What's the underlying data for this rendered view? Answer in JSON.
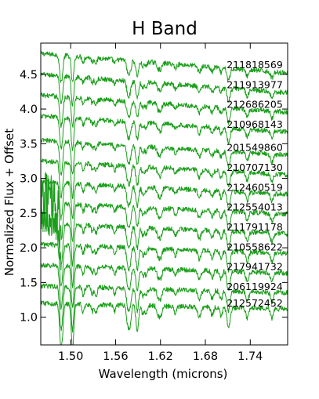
{
  "chart_data": {
    "type": "line",
    "title": "H Band",
    "xlabel": "Wavelength (microns)",
    "ylabel": "Normalized Flux + Offset",
    "xlim": [
      1.46,
      1.79
    ],
    "ylim": [
      0.6,
      4.95
    ],
    "x_ticks": [
      1.5,
      1.56,
      1.62,
      1.68,
      1.74
    ],
    "x_tick_labels": [
      "1.50",
      "1.56",
      "1.62",
      "1.68",
      "1.74"
    ],
    "y_ticks": [
      1.0,
      1.5,
      2.0,
      2.5,
      3.0,
      3.5,
      4.0,
      4.5
    ],
    "y_tick_labels": [
      "1.0",
      "1.5",
      "2.0",
      "2.5",
      "3.0",
      "3.5",
      "4.0",
      "4.5"
    ],
    "grid": false,
    "line_color": "#1a9e1a",
    "series": [
      {
        "name": "211818569",
        "offset": 4.8,
        "slope": 0.85
      },
      {
        "name": "211913977",
        "offset": 4.5,
        "slope": 0.8
      },
      {
        "name": "212686205",
        "offset": 4.2,
        "slope": 0.75
      },
      {
        "name": "210968143",
        "offset": 3.9,
        "slope": 0.7
      },
      {
        "name": "201549860",
        "offset": 3.55,
        "slope": 0.65
      },
      {
        "name": "210707130",
        "offset": 3.25,
        "slope": 0.6
      },
      {
        "name": "212460519",
        "offset": 2.95,
        "slope": 0.55
      },
      {
        "name": "212554013",
        "offset": 2.65,
        "slope": 0.5
      },
      {
        "name": "211791178",
        "offset": 2.35,
        "slope": 0.45
      },
      {
        "name": "210558622",
        "offset": 2.05,
        "slope": 0.4
      },
      {
        "name": "217941732",
        "offset": 1.75,
        "slope": 0.35
      },
      {
        "name": "206119924",
        "offset": 1.45,
        "slope": 0.3
      },
      {
        "name": "212572452",
        "offset": 1.2,
        "slope": 0.25
      }
    ]
  }
}
